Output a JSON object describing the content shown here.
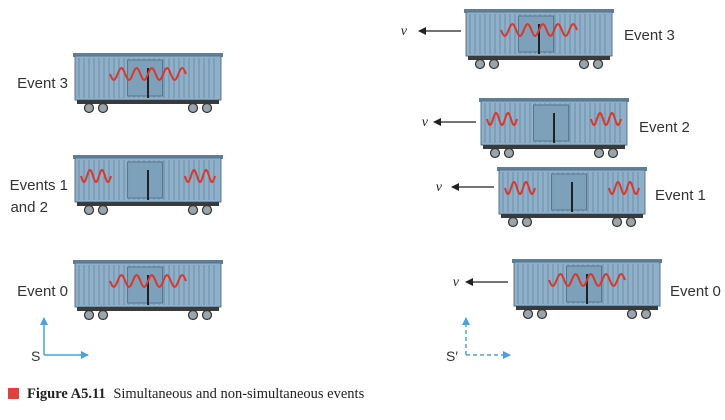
{
  "frames": {
    "S": {
      "axis_label": "S",
      "cars": [
        {
          "event_label": [
            "Event 3"
          ],
          "waves": "center"
        },
        {
          "event_label": [
            "Events 1",
            "and 2"
          ],
          "waves": "ends"
        },
        {
          "event_label": [
            "Event 0"
          ],
          "waves": "center"
        }
      ]
    },
    "S_prime": {
      "axis_label": "S′",
      "velocity_symbol": "v",
      "cars": [
        {
          "event_label": [
            "Event 3"
          ],
          "waves": "center"
        },
        {
          "event_label": [
            "Event 2"
          ],
          "waves": "ends"
        },
        {
          "event_label": [
            "Event 1"
          ],
          "waves": "ends"
        },
        {
          "event_label": [
            "Event 0"
          ],
          "waves": "center"
        }
      ]
    }
  },
  "caption": {
    "figure_number": "Figure A5.11",
    "text": "Simultaneous and non-simultaneous events"
  },
  "colors": {
    "car_body": "#8fb0c8",
    "car_stripe": "#6a8eab",
    "undercarriage": "#3a3a3a",
    "wave": "#d9382c",
    "s_axis": "#4aa3dc",
    "caption_square": "#e0413a"
  }
}
